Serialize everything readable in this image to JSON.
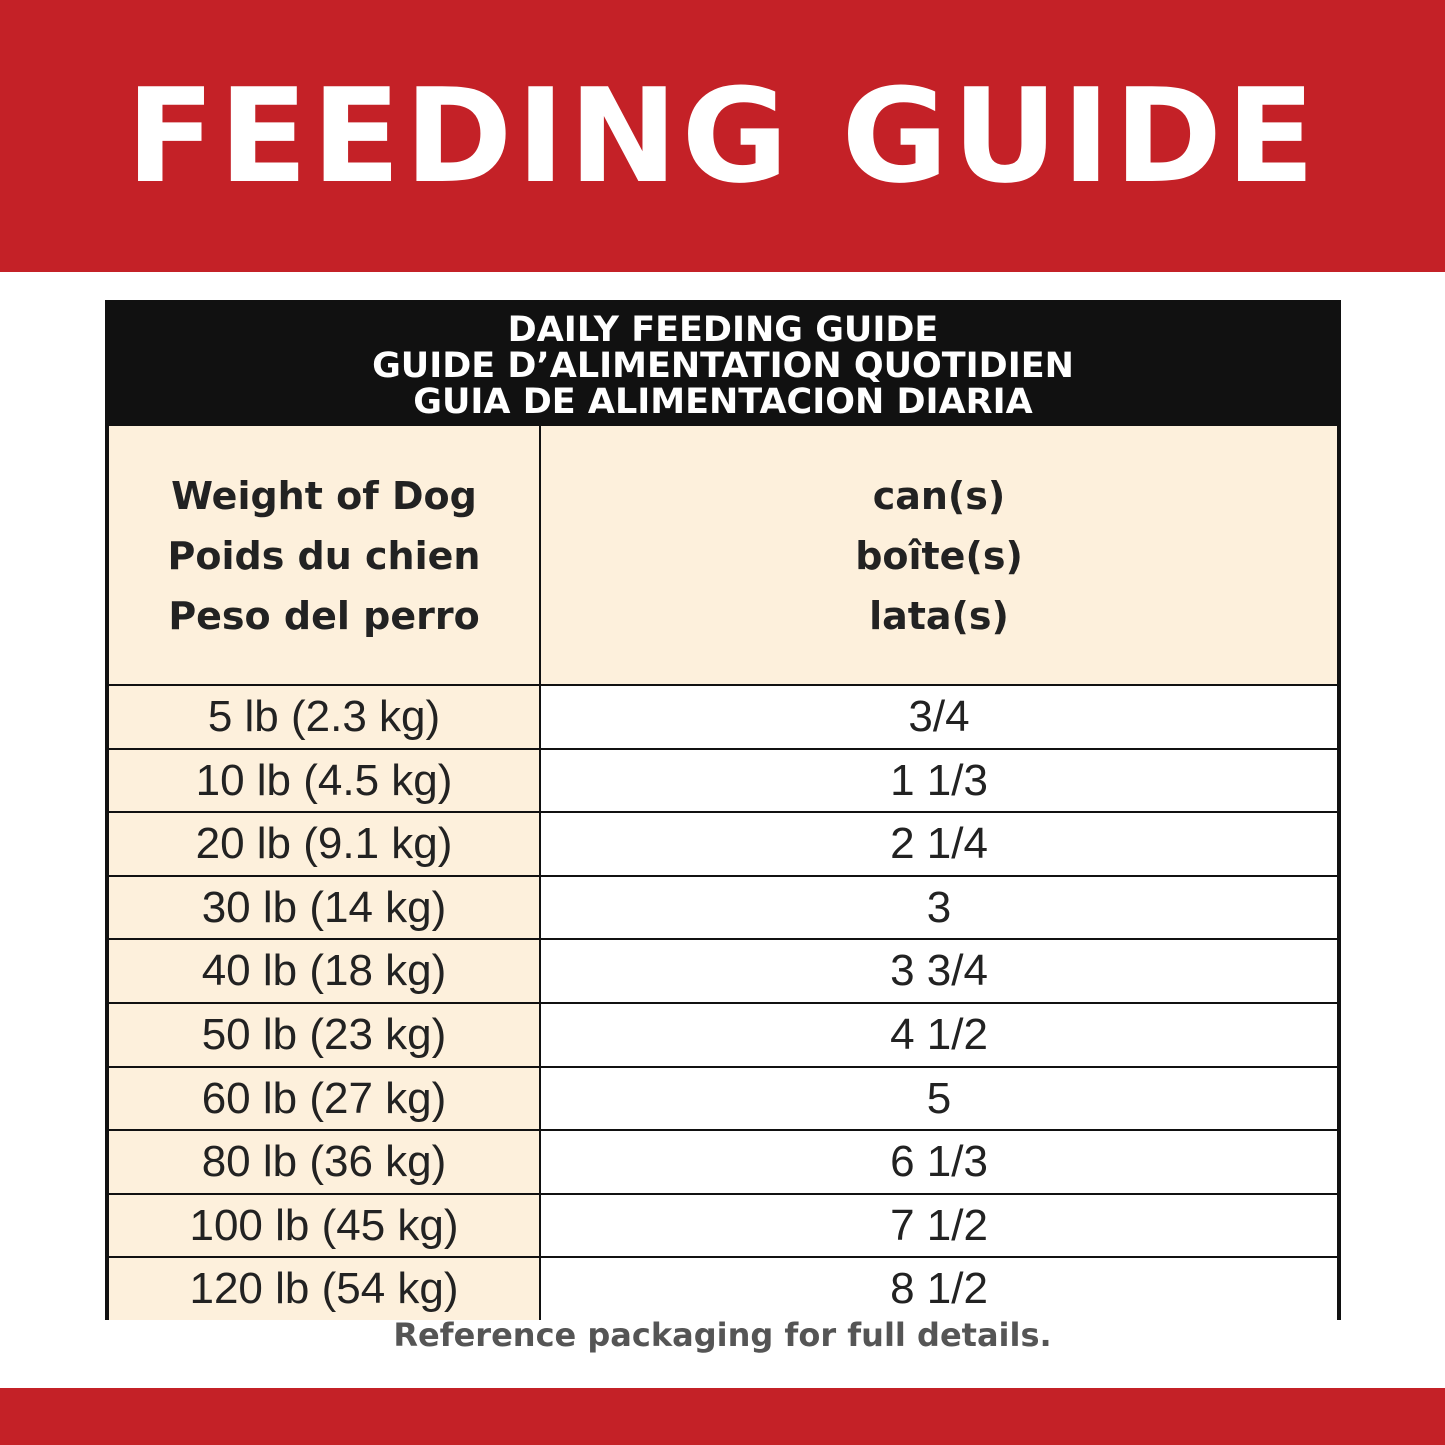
{
  "header": {
    "title": "FEEDING GUIDE"
  },
  "table": {
    "title": [
      "DAILY FEEDING GUIDE",
      "GUIDE D’ALIMENTATION QUOTIDIEN",
      "GUIA DE ALIMENTACION DIARIA"
    ],
    "columns": [
      [
        "Weight of Dog",
        "Poids du chien",
        "Peso del perro"
      ],
      [
        "can(s)",
        "boîte(s)",
        "lata(s)"
      ]
    ],
    "rows": [
      [
        "5 lb (2.3 kg)",
        "3/4"
      ],
      [
        "10 lb (4.5 kg)",
        "1 1/3"
      ],
      [
        "20 lb (9.1 kg)",
        "2 1/4"
      ],
      [
        "30 lb (14 kg)",
        "3"
      ],
      [
        "40 lb (18 kg)",
        "3 3/4"
      ],
      [
        "50 lb (23 kg)",
        "4 1/2"
      ],
      [
        "60 lb (27 kg)",
        "5"
      ],
      [
        "80 lb (36 kg)",
        "6 1/3"
      ],
      [
        "100 lb (45 kg)",
        "7 1/2"
      ],
      [
        "120 lb (54 kg)",
        "8 1/2"
      ]
    ]
  },
  "footer": {
    "note": "Reference packaging for full details."
  }
}
